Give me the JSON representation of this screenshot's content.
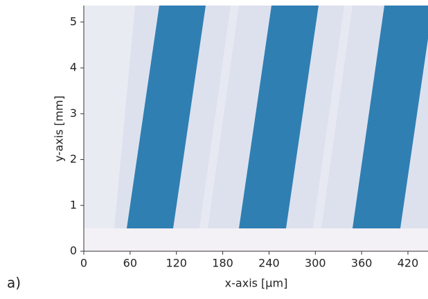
{
  "chart_data": {
    "type": "image",
    "panel_label": "a)",
    "xlabel": "x-axis [μm]",
    "ylabel": "y-axis [mm]",
    "xlim": [
      0,
      446
    ],
    "xticks": [
      0,
      60,
      120,
      180,
      240,
      300,
      360,
      420
    ],
    "ylim": [
      0,
      5.36
    ],
    "yticks": [
      0,
      1,
      2,
      3,
      4,
      5
    ]
  }
}
